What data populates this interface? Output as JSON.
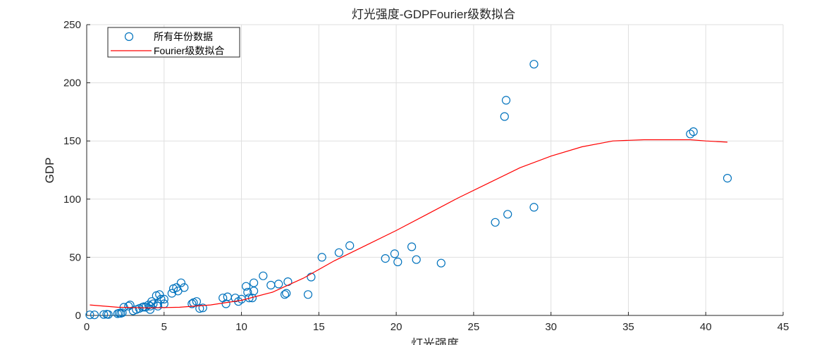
{
  "chart_data": {
    "type": "scatter",
    "title": "灯光强度-GDPFourier级数拟合",
    "xlabel": "灯光强度",
    "ylabel": "GDP",
    "xlim": [
      0,
      45
    ],
    "ylim": [
      0,
      250
    ],
    "xticks": [
      0,
      5,
      10,
      15,
      20,
      25,
      30,
      35,
      40,
      45
    ],
    "yticks": [
      0,
      50,
      100,
      150,
      200,
      250
    ],
    "grid": true,
    "legend_position": "top-left",
    "legend": [
      "所有年份数据",
      "Fourier级数拟合"
    ],
    "colors": {
      "scatter": "#0072BD",
      "fit": "#FF0000"
    },
    "series": [
      {
        "name": "所有年份数据",
        "type": "scatter",
        "points": [
          [
            0.2,
            0.5
          ],
          [
            0.5,
            0.5
          ],
          [
            1.1,
            0.8
          ],
          [
            1.3,
            1.0
          ],
          [
            1.4,
            0.8
          ],
          [
            2.0,
            1.5
          ],
          [
            2.1,
            2.0
          ],
          [
            2.2,
            1.8
          ],
          [
            2.3,
            2.3
          ],
          [
            2.4,
            7.0
          ],
          [
            2.7,
            8.0
          ],
          [
            2.8,
            9.0
          ],
          [
            3.0,
            4.0
          ],
          [
            3.2,
            5.0
          ],
          [
            3.4,
            6.0
          ],
          [
            3.6,
            7.0
          ],
          [
            3.7,
            7.5
          ],
          [
            3.8,
            7.0
          ],
          [
            4.0,
            9.0
          ],
          [
            4.1,
            8.0
          ],
          [
            4.1,
            5.0
          ],
          [
            4.2,
            12.0
          ],
          [
            4.3,
            10.0
          ],
          [
            4.5,
            17.0
          ],
          [
            4.6,
            8.0
          ],
          [
            4.6,
            10.0
          ],
          [
            4.7,
            18.0
          ],
          [
            4.8,
            14.0
          ],
          [
            5.0,
            10.0
          ],
          [
            5.0,
            14.0
          ],
          [
            5.5,
            19.0
          ],
          [
            5.6,
            23.0
          ],
          [
            5.8,
            24.0
          ],
          [
            5.9,
            21.0
          ],
          [
            6.1,
            28.0
          ],
          [
            6.3,
            24.0
          ],
          [
            6.8,
            10.0
          ],
          [
            6.9,
            11.0
          ],
          [
            7.1,
            12.0
          ],
          [
            7.3,
            6.0
          ],
          [
            7.5,
            6.5
          ],
          [
            8.8,
            15.0
          ],
          [
            9.0,
            10.0
          ],
          [
            9.1,
            16.0
          ],
          [
            9.6,
            15.0
          ],
          [
            9.8,
            12.0
          ],
          [
            10.0,
            14.0
          ],
          [
            10.3,
            25.0
          ],
          [
            10.4,
            20.0
          ],
          [
            10.5,
            15.0
          ],
          [
            10.7,
            15.0
          ],
          [
            10.8,
            21.0
          ],
          [
            10.8,
            28.0
          ],
          [
            11.4,
            34.0
          ],
          [
            11.9,
            26.0
          ],
          [
            12.4,
            27.0
          ],
          [
            12.8,
            18.0
          ],
          [
            12.9,
            19.0
          ],
          [
            13.0,
            29.0
          ],
          [
            14.3,
            18.0
          ],
          [
            14.5,
            33.0
          ],
          [
            15.2,
            50.0
          ],
          [
            16.3,
            54.0
          ],
          [
            17.0,
            60.0
          ],
          [
            19.3,
            49.0
          ],
          [
            19.9,
            53.0
          ],
          [
            20.1,
            46.0
          ],
          [
            21.0,
            59.0
          ],
          [
            21.3,
            48.0
          ],
          [
            22.9,
            45.0
          ],
          [
            26.4,
            80.0
          ],
          [
            27.0,
            171.0
          ],
          [
            27.1,
            185.0
          ],
          [
            27.2,
            87.0
          ],
          [
            28.9,
            216.0
          ],
          [
            28.9,
            93.0
          ],
          [
            39.0,
            156.0
          ],
          [
            39.2,
            158.0
          ],
          [
            41.4,
            118.0
          ]
        ]
      },
      {
        "name": "Fourier级数拟合",
        "type": "line",
        "x": [
          0.2,
          2,
          4,
          6,
          8,
          10,
          12,
          14,
          16,
          18,
          20,
          22,
          24,
          26,
          28,
          30,
          32,
          34,
          36,
          38,
          39,
          40,
          41.4
        ],
        "y": [
          9,
          7,
          6.5,
          7,
          9,
          13,
          20,
          32,
          47,
          60,
          73,
          87,
          101,
          114,
          127,
          137,
          145,
          150,
          151,
          151,
          151,
          150,
          149
        ]
      }
    ]
  }
}
